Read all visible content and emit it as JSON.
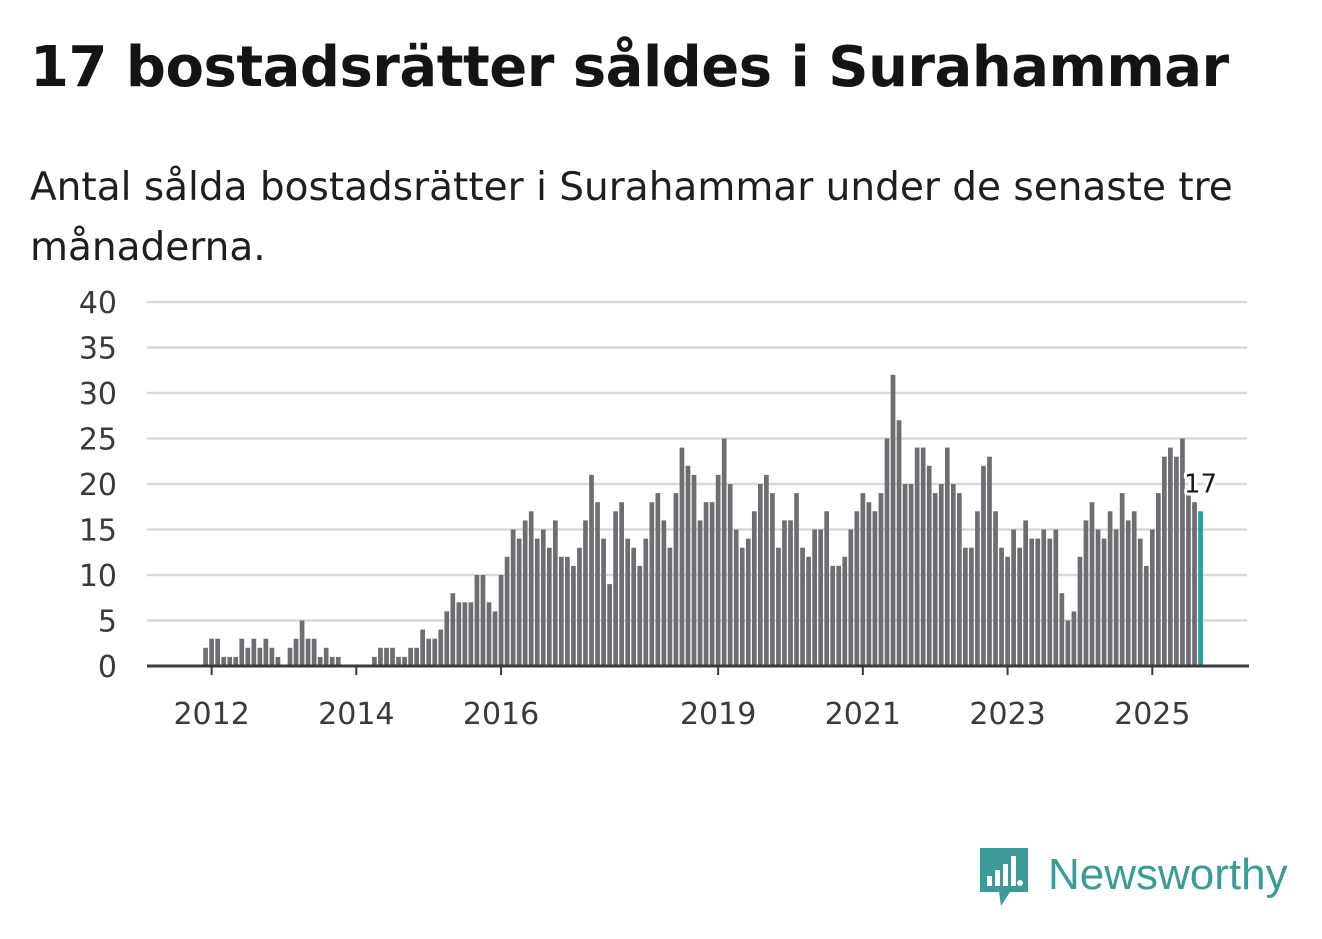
{
  "title": "17 bostadsrätter såldes i Surahammar",
  "subtitle": "Antal sålda bostadsrätter i Surahammar under de senaste tre månaderna.",
  "brand": {
    "name": "Newsworthy",
    "icon": "newsworthy-logo-icon"
  },
  "colors": {
    "bar": "#6e6d72",
    "highlight": "#1fa39a",
    "grid": "#d9d9d9",
    "axis": "#3a3a3a",
    "brand": "#3b9c97"
  },
  "chart_data": {
    "type": "bar",
    "title": "17 bostadsrätter såldes i Surahammar",
    "xlabel": "",
    "ylabel": "",
    "ylim": [
      0,
      40
    ],
    "yticks": [
      "0",
      "5",
      "10",
      "15",
      "20",
      "25",
      "30",
      "35",
      "40"
    ],
    "xticks": [
      {
        "label": "2012",
        "index": 9
      },
      {
        "label": "2014",
        "index": 33
      },
      {
        "label": "2016",
        "index": 57
      },
      {
        "label": "2019",
        "index": 93
      },
      {
        "label": "2021",
        "index": 117
      },
      {
        "label": "2023",
        "index": 141
      },
      {
        "label": "2025",
        "index": 165
      }
    ],
    "start_period": "2011-04",
    "highlight_last": true,
    "last_value_label": "17",
    "grid": true,
    "values": [
      0,
      0,
      0,
      0,
      0,
      0,
      0,
      0,
      2,
      3,
      3,
      1,
      1,
      1,
      3,
      2,
      3,
      2,
      3,
      2,
      1,
      0,
      2,
      3,
      5,
      3,
      3,
      1,
      2,
      1,
      1,
      0,
      0,
      0,
      0,
      0,
      1,
      2,
      2,
      2,
      1,
      1,
      2,
      2,
      4,
      3,
      3,
      4,
      6,
      8,
      7,
      7,
      7,
      10,
      10,
      7,
      6,
      10,
      12,
      15,
      14,
      16,
      17,
      14,
      15,
      13,
      16,
      12,
      12,
      11,
      13,
      16,
      21,
      18,
      14,
      9,
      17,
      18,
      14,
      13,
      11,
      14,
      18,
      19,
      16,
      13,
      19,
      24,
      22,
      21,
      16,
      18,
      18,
      21,
      25,
      20,
      15,
      13,
      14,
      17,
      20,
      21,
      19,
      13,
      16,
      16,
      19,
      13,
      12,
      15,
      15,
      17,
      11,
      11,
      12,
      15,
      17,
      19,
      18,
      17,
      19,
      25,
      32,
      27,
      20,
      20,
      24,
      24,
      22,
      19,
      20,
      24,
      20,
      19,
      13,
      13,
      17,
      22,
      23,
      17,
      13,
      12,
      15,
      13,
      16,
      14,
      14,
      15,
      14,
      15,
      8,
      5,
      6,
      12,
      16,
      18,
      15,
      14,
      17,
      15,
      19,
      16,
      17,
      14,
      11,
      15,
      19,
      23,
      24,
      23,
      25,
      19,
      18,
      17
    ]
  }
}
